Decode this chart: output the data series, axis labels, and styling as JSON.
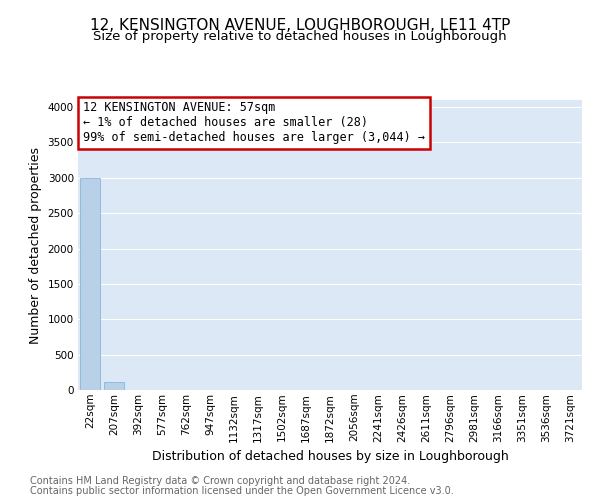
{
  "title": "12, KENSINGTON AVENUE, LOUGHBOROUGH, LE11 4TP",
  "subtitle": "Size of property relative to detached houses in Loughborough",
  "xlabel": "Distribution of detached houses by size in Loughborough",
  "ylabel": "Number of detached properties",
  "categories": [
    "22sqm",
    "207sqm",
    "392sqm",
    "577sqm",
    "762sqm",
    "947sqm",
    "1132sqm",
    "1317sqm",
    "1502sqm",
    "1687sqm",
    "1872sqm",
    "2056sqm",
    "2241sqm",
    "2426sqm",
    "2611sqm",
    "2796sqm",
    "2981sqm",
    "3166sqm",
    "3351sqm",
    "3536sqm",
    "3721sqm"
  ],
  "values": [
    3000,
    115,
    0,
    0,
    0,
    0,
    0,
    0,
    0,
    0,
    0,
    0,
    0,
    0,
    0,
    0,
    0,
    0,
    0,
    0,
    0
  ],
  "bar_color": "#b8d0e8",
  "bar_edge_color": "#7bafd4",
  "annotation_box_color": "#cc0000",
  "annotation_text": "12 KENSINGTON AVENUE: 57sqm\n← 1% of detached houses are smaller (28)\n99% of semi-detached houses are larger (3,044) →",
  "ylim": [
    0,
    4100
  ],
  "yticks": [
    0,
    500,
    1000,
    1500,
    2000,
    2500,
    3000,
    3500,
    4000
  ],
  "bg_color": "#dce8f5",
  "grid_color": "#ffffff",
  "footer_line1": "Contains HM Land Registry data © Crown copyright and database right 2024.",
  "footer_line2": "Contains public sector information licensed under the Open Government Licence v3.0.",
  "title_fontsize": 11,
  "subtitle_fontsize": 9.5,
  "axis_label_fontsize": 9,
  "tick_fontsize": 7.5,
  "annotation_fontsize": 8.5,
  "footer_fontsize": 7
}
